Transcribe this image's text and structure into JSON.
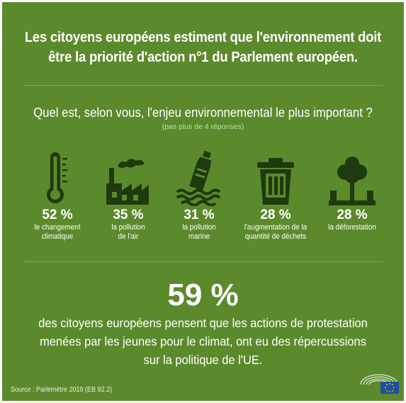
{
  "header": {
    "title_line1": "Les citoyens européens estiment que l'environnement doit",
    "title_line2": "être la priorité d'action n°1 du Parlement européen."
  },
  "survey": {
    "question": "Quel est, selon vous, l'enjeu environnemental le plus important ?",
    "note": "(pas plus de 4 réponses)",
    "items": [
      {
        "icon": "thermometer-icon",
        "percent": "52 %",
        "label": "le changement\nclimatique"
      },
      {
        "icon": "factory-icon",
        "percent": "35 %",
        "label": "la pollution\nde l'air"
      },
      {
        "icon": "floating-bottle-icon",
        "percent": "31 %",
        "label": "la pollution\nmarine"
      },
      {
        "icon": "trash-bin-icon",
        "percent": "28 %",
        "label": "l'augmentation de la\nquantité de déchets"
      },
      {
        "icon": "tree-stumps-icon",
        "percent": "28 %",
        "label": "la déforestation"
      }
    ]
  },
  "highlight": {
    "value": "59 %",
    "line1": "des citoyens européens pensent que les actions de protestation",
    "line2": "menées par les jeunes pour le climat, ont eu des répercussions",
    "line3": "sur la politique de l'UE."
  },
  "footer": {
    "source": "Source : Parlemètre 2019 (EB 92.2)",
    "logo_icon": "european-parliament-logo"
  },
  "colors": {
    "background": "#5b8a2d",
    "icon_dark": "#1f3a0e",
    "text": "#ffffff",
    "eu_blue": "#1f4fa0",
    "eu_star": "#ffdd00"
  }
}
